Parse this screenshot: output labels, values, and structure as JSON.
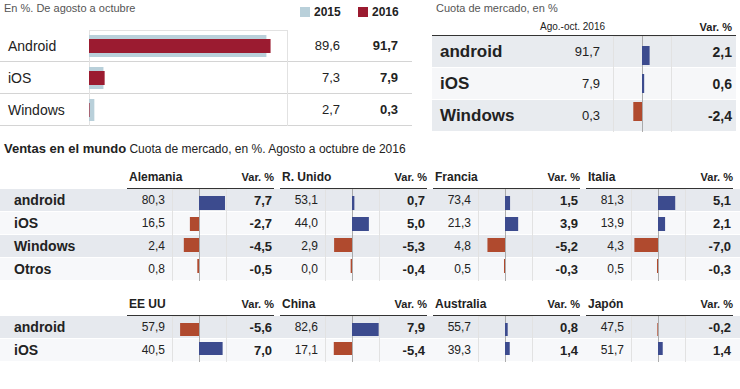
{
  "chart_data": [
    {
      "type": "bar",
      "orientation": "horizontal",
      "subtitle": "En %. De agosto a octubre",
      "categories": [
        "Android",
        "iOS",
        "Windows"
      ],
      "series": [
        {
          "name": "2015",
          "color": "#b9d0da",
          "values": [
            89.6,
            7.3,
            2.7
          ],
          "value_labels": [
            "89,6",
            "7,3",
            "2,7"
          ]
        },
        {
          "name": "2016",
          "color": "#9b1b30",
          "values": [
            91.7,
            7.9,
            0.3
          ],
          "value_labels": [
            "91,7",
            "7,9",
            "0,3"
          ]
        }
      ],
      "xlim": [
        0,
        100
      ],
      "tick_labels": false,
      "data_labels": true,
      "legend": "top"
    },
    {
      "type": "bar",
      "orientation": "horizontal",
      "title": "Cuota de mercado, en %",
      "share_title": "Ago.-oct. 2016",
      "column_title": "Var. %",
      "categories": [
        "android",
        "iOS",
        "Windows"
      ],
      "shares": [
        91.7,
        7.9,
        0.3
      ],
      "share_labels": [
        "91,7",
        "7,9",
        "0,3"
      ],
      "values": [
        2.1,
        0.6,
        -2.4
      ],
      "value_labels": [
        "2,1",
        "0,6",
        "-2,4"
      ],
      "colors": [
        "#3c4b8e",
        "#3c4b8e",
        "#b04a2e"
      ],
      "xlim": [
        -8,
        8
      ],
      "tick_labels": false,
      "data_labels": true
    },
    {
      "type": "bar",
      "orientation": "horizontal",
      "title": "Alemania",
      "column_title": "Var. %",
      "categories": [
        "android",
        "iOS",
        "Windows",
        "Otros"
      ],
      "shares": [
        80.3,
        16.5,
        2.4,
        0.8
      ],
      "share_labels": [
        "80,3",
        "16,5",
        "2,4",
        "0,8"
      ],
      "values": [
        7.7,
        -2.7,
        -4.5,
        -0.5
      ],
      "value_labels": [
        "7,7",
        "-2,7",
        "-4,5",
        "-0,5"
      ],
      "colors": [
        "#3c4b8e",
        "#b04a2e",
        "#b04a2e",
        "#b04a2e"
      ],
      "xlim": [
        -8,
        8
      ],
      "tick_labels": false,
      "data_labels": true
    },
    {
      "type": "bar",
      "orientation": "horizontal",
      "title": "R. Unido",
      "column_title": "Var. %",
      "categories": [
        "android",
        "iOS",
        "Windows",
        "Otros"
      ],
      "shares": [
        53.1,
        44.0,
        2.9,
        0.0
      ],
      "share_labels": [
        "53,1",
        "44,0",
        "2,9",
        "0,0"
      ],
      "values": [
        0.7,
        5.0,
        -5.3,
        -0.4
      ],
      "value_labels": [
        "0,7",
        "5,0",
        "-5,3",
        "-0,4"
      ],
      "colors": [
        "#3c4b8e",
        "#3c4b8e",
        "#b04a2e",
        "#b04a2e"
      ],
      "xlim": [
        -8,
        8
      ],
      "tick_labels": false,
      "data_labels": true
    },
    {
      "type": "bar",
      "orientation": "horizontal",
      "title": "Francia",
      "column_title": "Var. %",
      "categories": [
        "android",
        "iOS",
        "Windows",
        "Otros"
      ],
      "shares": [
        73.4,
        21.3,
        4.8,
        0.5
      ],
      "share_labels": [
        "73,4",
        "21,3",
        "4,8",
        "0,5"
      ],
      "values": [
        1.5,
        3.9,
        -5.2,
        -0.3
      ],
      "value_labels": [
        "1,5",
        "3,9",
        "-5,2",
        "-0,3"
      ],
      "colors": [
        "#3c4b8e",
        "#3c4b8e",
        "#b04a2e",
        "#b04a2e"
      ],
      "xlim": [
        -8,
        8
      ],
      "tick_labels": false,
      "data_labels": true
    },
    {
      "type": "bar",
      "orientation": "horizontal",
      "title": "Italia",
      "column_title": "Var. %",
      "categories": [
        "android",
        "iOS",
        "Windows",
        "Otros"
      ],
      "shares": [
        81.3,
        13.9,
        4.3,
        0.5
      ],
      "share_labels": [
        "81,3",
        "13,9",
        "4,3",
        "0,5"
      ],
      "values": [
        5.1,
        2.1,
        -7.0,
        -0.3
      ],
      "value_labels": [
        "5,1",
        "2,1",
        "-7,0",
        "-0,3"
      ],
      "colors": [
        "#3c4b8e",
        "#3c4b8e",
        "#b04a2e",
        "#b04a2e"
      ],
      "xlim": [
        -8,
        8
      ],
      "tick_labels": false,
      "data_labels": true
    },
    {
      "type": "bar",
      "orientation": "horizontal",
      "title": "EE UU",
      "column_title": "Var. %",
      "categories": [
        "android",
        "iOS"
      ],
      "shares": [
        57.9,
        40.5
      ],
      "share_labels": [
        "57,9",
        "40,5"
      ],
      "values": [
        -5.6,
        7.0
      ],
      "value_labels": [
        "-5,6",
        "7,0"
      ],
      "colors": [
        "#b04a2e",
        "#3c4b8e"
      ],
      "xlim": [
        -8,
        8
      ],
      "tick_labels": false,
      "data_labels": true
    },
    {
      "type": "bar",
      "orientation": "horizontal",
      "title": "China",
      "column_title": "Var. %",
      "categories": [
        "android",
        "iOS"
      ],
      "shares": [
        82.6,
        17.1
      ],
      "share_labels": [
        "82,6",
        "17,1"
      ],
      "values": [
        7.9,
        -5.4
      ],
      "value_labels": [
        "7,9",
        "-5,4"
      ],
      "colors": [
        "#3c4b8e",
        "#b04a2e"
      ],
      "xlim": [
        -8,
        8
      ],
      "tick_labels": false,
      "data_labels": true
    },
    {
      "type": "bar",
      "orientation": "horizontal",
      "title": "Australia",
      "column_title": "Var. %",
      "categories": [
        "android",
        "iOS"
      ],
      "shares": [
        55.7,
        39.3
      ],
      "share_labels": [
        "55,7",
        "39,3"
      ],
      "values": [
        0.8,
        1.4
      ],
      "value_labels": [
        "0,8",
        "1,4"
      ],
      "colors": [
        "#3c4b8e",
        "#3c4b8e"
      ],
      "xlim": [
        -8,
        8
      ],
      "tick_labels": false,
      "data_labels": true
    },
    {
      "type": "bar",
      "orientation": "horizontal",
      "title": "Japón",
      "column_title": "Var. %",
      "categories": [
        "android",
        "iOS"
      ],
      "shares": [
        47.5,
        51.7
      ],
      "share_labels": [
        "47,5",
        "51,7"
      ],
      "values": [
        -0.2,
        1.4
      ],
      "value_labels": [
        "-0,2",
        "1,4"
      ],
      "colors": [
        "#b04a2e",
        "#3c4b8e"
      ],
      "xlim": [
        -8,
        8
      ],
      "tick_labels": false,
      "data_labels": true
    }
  ],
  "section": {
    "title": "Ventas en el mundo",
    "subtitle": "Cuota de mercado, en %. Agosto a octubre de 2016"
  }
}
